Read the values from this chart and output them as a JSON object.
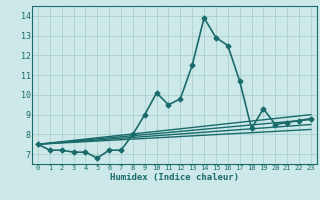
{
  "xlabel": "Humidex (Indice chaleur)",
  "background_color": "#cce8e8",
  "line_color": "#1a6b6b",
  "grid_color": "#aad0d0",
  "xlim": [
    -0.5,
    23.5
  ],
  "ylim": [
    6.5,
    14.5
  ],
  "xticks": [
    0,
    1,
    2,
    3,
    4,
    5,
    6,
    7,
    8,
    9,
    10,
    11,
    12,
    13,
    14,
    15,
    16,
    17,
    18,
    19,
    20,
    21,
    22,
    23
  ],
  "yticks": [
    7,
    8,
    9,
    10,
    11,
    12,
    13,
    14
  ],
  "series": [
    {
      "x": [
        0,
        1,
        2,
        3,
        4,
        5,
        6,
        7,
        8,
        9,
        10,
        11,
        12,
        13,
        14,
        15,
        16,
        17,
        18,
        19,
        20,
        21,
        22,
        23
      ],
      "y": [
        7.5,
        7.2,
        7.2,
        7.1,
        7.1,
        6.8,
        7.2,
        7.2,
        8.0,
        9.0,
        10.1,
        9.5,
        9.8,
        11.5,
        13.9,
        12.9,
        12.5,
        10.7,
        8.3,
        9.3,
        8.5,
        8.6,
        8.7,
        8.8
      ],
      "marker": "D",
      "linewidth": 1.2,
      "markersize": 2.5
    },
    {
      "x": [
        0,
        23
      ],
      "y": [
        7.5,
        9.0
      ],
      "marker": null,
      "linewidth": 1.0
    },
    {
      "x": [
        0,
        23
      ],
      "y": [
        7.5,
        8.75
      ],
      "marker": null,
      "linewidth": 1.0
    },
    {
      "x": [
        0,
        23
      ],
      "y": [
        7.5,
        8.5
      ],
      "marker": null,
      "linewidth": 1.0
    },
    {
      "x": [
        0,
        23
      ],
      "y": [
        7.5,
        8.25
      ],
      "marker": null,
      "linewidth": 1.0
    }
  ]
}
